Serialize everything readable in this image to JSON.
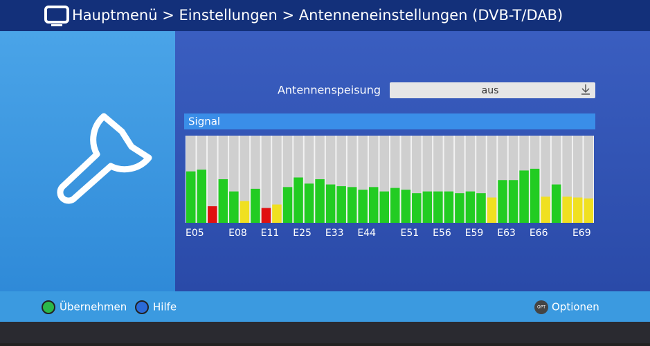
{
  "header": {
    "title": "Hauptmenü > Einstellungen > Antenneneinstellungen (DVB-T/DAB)"
  },
  "setting": {
    "label": "Antennenspeisung",
    "value": "aus"
  },
  "chart_data": {
    "type": "bar",
    "title": "Signal",
    "categories": [
      "E05",
      null,
      null,
      null,
      "E08",
      null,
      null,
      "E11",
      null,
      null,
      "E25",
      null,
      null,
      "E33",
      null,
      null,
      "E44",
      null,
      null,
      null,
      "E51",
      null,
      null,
      "E56",
      null,
      null,
      "E59",
      null,
      null,
      "E63",
      null,
      null,
      "E66",
      null,
      null,
      null,
      "E69",
      null
    ],
    "values": [
      59,
      61,
      19,
      50,
      36,
      25,
      39,
      17,
      21,
      41,
      52,
      45,
      50,
      44,
      42,
      41,
      38,
      41,
      36,
      40,
      38,
      34,
      36,
      36,
      36,
      34,
      36,
      34,
      29,
      49,
      49,
      60,
      62,
      30,
      44,
      30,
      29,
      28
    ],
    "colors": [
      "#22cc22",
      "#22cc22",
      "#e01010",
      "#22cc22",
      "#22cc22",
      "#f0e020",
      "#22cc22",
      "#e01010",
      "#f0e020",
      "#22cc22",
      "#22cc22",
      "#22cc22",
      "#22cc22",
      "#22cc22",
      "#22cc22",
      "#22cc22",
      "#22cc22",
      "#22cc22",
      "#22cc22",
      "#22cc22",
      "#22cc22",
      "#22cc22",
      "#22cc22",
      "#22cc22",
      "#22cc22",
      "#22cc22",
      "#22cc22",
      "#22cc22",
      "#f0e020",
      "#22cc22",
      "#22cc22",
      "#22cc22",
      "#22cc22",
      "#f0e020",
      "#22cc22",
      "#f0e020",
      "#f0e020",
      "#f0e020"
    ],
    "ylim": [
      0,
      100
    ]
  },
  "footer": {
    "ok": "Übernehmen",
    "help": "Hilfe",
    "opt_icon": "OPT",
    "options": "Optionen"
  }
}
